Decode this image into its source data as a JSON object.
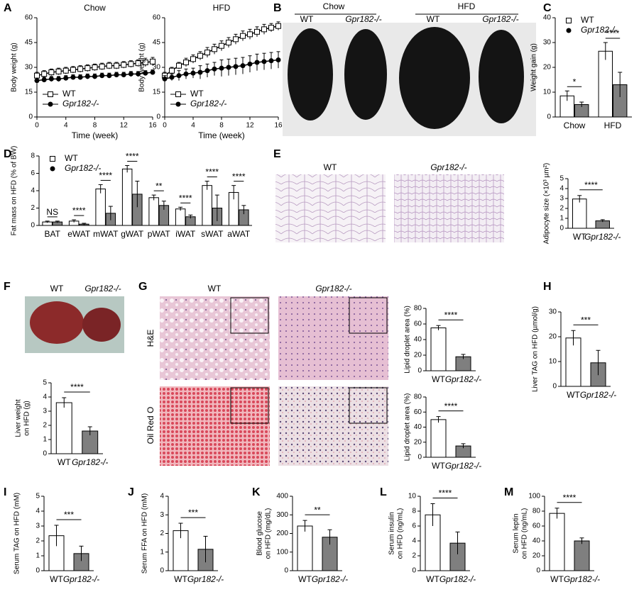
{
  "figure": {
    "panels": [
      "A",
      "B",
      "C",
      "D",
      "E",
      "F",
      "G",
      "H",
      "I",
      "J",
      "K",
      "L",
      "M"
    ],
    "B": {
      "groups": [
        "Chow",
        "HFD"
      ],
      "labels": [
        "WT",
        "Gpr182-/-",
        "WT",
        "Gpr182-/-"
      ]
    },
    "E": {
      "labels": [
        "WT",
        "Gpr182-/-"
      ]
    },
    "F": {
      "labels": [
        "WT",
        "Gpr182-/-"
      ]
    },
    "G": {
      "labels": [
        "WT",
        "Gpr182-/-"
      ],
      "rows": [
        "H&E",
        "Oil Red O"
      ]
    }
  },
  "chart_data": [
    {
      "type": "line",
      "title": "Chow",
      "xlabel": "Time (week)",
      "ylabel": "Body weight (g)",
      "x": [
        0,
        1,
        2,
        3,
        4,
        5,
        6,
        7,
        8,
        9,
        10,
        11,
        12,
        13,
        14,
        15,
        16
      ],
      "xlim": [
        0,
        16
      ],
      "xticks": [
        0,
        4,
        8,
        12,
        16
      ],
      "ylim": [
        0,
        60
      ],
      "yticks": [
        0,
        15,
        30,
        45,
        60
      ],
      "legend": "lower left",
      "series": [
        {
          "name": "WT",
          "color": "#000000",
          "marker": "square",
          "values": [
            25,
            26,
            27,
            27.5,
            28,
            28.5,
            29,
            29.5,
            30,
            30.5,
            31,
            31,
            31.5,
            32,
            32.5,
            33,
            33.5
          ],
          "errors": [
            2,
            2,
            2,
            2,
            2,
            2,
            2,
            2,
            2,
            2,
            2,
            2,
            2,
            2,
            2,
            2.5,
            2.5
          ]
        },
        {
          "name": "Gpr182-/-",
          "color": "#000000",
          "marker": "circle",
          "values": [
            22,
            22.5,
            23,
            23,
            23.5,
            24,
            24,
            24.5,
            24.5,
            25,
            25,
            25.5,
            25.5,
            26,
            26,
            26.5,
            27
          ],
          "errors": [
            1.5,
            1.5,
            1.5,
            1.5,
            1.5,
            1.5,
            1.5,
            1.5,
            1.5,
            1.5,
            1.5,
            1.5,
            1.5,
            1.5,
            1.5,
            1.5,
            1.5
          ]
        }
      ]
    },
    {
      "type": "line",
      "title": "HFD",
      "xlabel": "Time (week)",
      "ylabel": "Body weight (g)",
      "x": [
        0,
        1,
        2,
        3,
        4,
        5,
        6,
        7,
        8,
        9,
        10,
        11,
        12,
        13,
        14,
        15,
        16
      ],
      "xlim": [
        0,
        16
      ],
      "xticks": [
        0,
        4,
        8,
        12,
        16
      ],
      "ylim": [
        0,
        60
      ],
      "yticks": [
        0,
        15,
        30,
        45,
        60
      ],
      "legend": "lower left",
      "series": [
        {
          "name": "WT",
          "color": "#000000",
          "marker": "square",
          "values": [
            25,
            28,
            31,
            33,
            35,
            37,
            39,
            41,
            43,
            45,
            47,
            49,
            50,
            51.5,
            53,
            54,
            55
          ],
          "errors": [
            2,
            2,
            2,
            2.5,
            2.5,
            2.5,
            3,
            3,
            3,
            3,
            3,
            3,
            3,
            3,
            3,
            2.5,
            2.5
          ]
        },
        {
          "name": "Gpr182-/-",
          "color": "#000000",
          "marker": "circle",
          "values": [
            23,
            24,
            25,
            26,
            26.5,
            27,
            28,
            29,
            29.5,
            30,
            30.5,
            31,
            32,
            33,
            33.5,
            34,
            34.5
          ],
          "errors": [
            2,
            2,
            3,
            3,
            3,
            4,
            4,
            4,
            5,
            5,
            5,
            5,
            5,
            5,
            5,
            5,
            5
          ]
        }
      ]
    },
    {
      "type": "bar",
      "ylabel": "Weight gain (g)",
      "categories": [
        "Chow",
        "HFD"
      ],
      "ylim": [
        0,
        40
      ],
      "yticks": [
        0,
        10,
        20,
        30,
        40
      ],
      "legend": "upper left",
      "significance": [
        "*",
        "****"
      ],
      "series": [
        {
          "name": "WT",
          "color": "#ffffff",
          "marker": "square",
          "values": [
            8.5,
            26.5
          ],
          "errors": [
            2,
            3.5
          ]
        },
        {
          "name": "Gpr182-/-",
          "color": "#7f7f7f",
          "marker": "circle",
          "values": [
            5,
            13
          ],
          "errors": [
            1,
            5
          ]
        }
      ]
    },
    {
      "type": "bar",
      "ylabel": "Fat mass on HFD (% of BW)",
      "categories": [
        "BAT",
        "eWAT",
        "mWAT",
        "gWAT",
        "pWAT",
        "iWAT",
        "sWAT",
        "aWAT"
      ],
      "ylim": [
        0,
        8
      ],
      "yticks": [
        0,
        2,
        4,
        6,
        8
      ],
      "legend": "upper left",
      "significance": [
        "NS",
        "****",
        "****",
        "****",
        "**",
        "****",
        "****",
        "****"
      ],
      "series": [
        {
          "name": "WT",
          "color": "#ffffff",
          "marker": "square",
          "values": [
            0.4,
            0.5,
            4.2,
            6.5,
            3.2,
            1.9,
            4.6,
            3.8
          ],
          "errors": [
            0.1,
            0.15,
            0.5,
            0.4,
            0.3,
            0.2,
            0.5,
            0.8
          ]
        },
        {
          "name": "Gpr182-/-",
          "color": "#7f7f7f",
          "marker": "circle",
          "values": [
            0.4,
            0.15,
            1.4,
            3.6,
            2.3,
            1.0,
            2.0,
            1.8
          ],
          "errors": [
            0.1,
            0.1,
            0.8,
            1.5,
            0.5,
            0.2,
            1.5,
            0.5
          ]
        }
      ]
    },
    {
      "type": "bar",
      "ylabel": "Adipocyte size (×10³ µm²)",
      "categories": [
        "WT",
        "Gpr182-/-"
      ],
      "ylim": [
        0,
        5
      ],
      "yticks": [
        0,
        1,
        2,
        3,
        4,
        5
      ],
      "significance": "****",
      "series": [
        {
          "colors": [
            "#ffffff",
            "#7f7f7f"
          ],
          "values": [
            2.95,
            0.75
          ],
          "errors": [
            0.35,
            0.12
          ]
        }
      ]
    },
    {
      "type": "bar",
      "ylabel": [
        "Liver weight",
        "on HFD (g)"
      ],
      "categories": [
        "WT",
        "Gpr182-/-"
      ],
      "ylim": [
        0,
        5
      ],
      "yticks": [
        0,
        1,
        2,
        3,
        4,
        5
      ],
      "significance": "****",
      "series": [
        {
          "colors": [
            "#ffffff",
            "#7f7f7f"
          ],
          "values": [
            3.6,
            1.6
          ],
          "errors": [
            0.35,
            0.3
          ]
        }
      ]
    },
    {
      "type": "bar",
      "ylabel": "Lipid droplet area (%)",
      "categories": [
        "WT",
        "Gpr182-/-"
      ],
      "ylim": [
        0,
        80
      ],
      "yticks": [
        0,
        20,
        40,
        60,
        80
      ],
      "significance": "****",
      "series": [
        {
          "colors": [
            "#ffffff",
            "#7f7f7f"
          ],
          "values": [
            55,
            18
          ],
          "errors": [
            3,
            3
          ]
        }
      ]
    },
    {
      "type": "bar",
      "ylabel": "Lipid droplet area (%)",
      "categories": [
        "WT",
        "Gpr182-/-"
      ],
      "ylim": [
        0,
        80
      ],
      "yticks": [
        0,
        20,
        40,
        60,
        80
      ],
      "significance": "****",
      "series": [
        {
          "colors": [
            "#ffffff",
            "#7f7f7f"
          ],
          "values": [
            50,
            15
          ],
          "errors": [
            4,
            3
          ]
        }
      ]
    },
    {
      "type": "bar",
      "ylabel": "Liver TAG on HFD (µmol/g)",
      "categories": [
        "WT",
        "Gpr182-/-"
      ],
      "ylim": [
        0,
        30
      ],
      "yticks": [
        0,
        10,
        20,
        30
      ],
      "significance": "***",
      "series": [
        {
          "colors": [
            "#ffffff",
            "#7f7f7f"
          ],
          "values": [
            19.5,
            9.5
          ],
          "errors": [
            3,
            5
          ]
        }
      ]
    },
    {
      "type": "bar",
      "ylabel": "Serum TAG on HFD (mM)",
      "categories": [
        "WT",
        "Gpr182-/-"
      ],
      "ylim": [
        0,
        5
      ],
      "yticks": [
        0,
        1,
        2,
        3,
        4,
        5
      ],
      "significance": "***",
      "series": [
        {
          "colors": [
            "#ffffff",
            "#7f7f7f"
          ],
          "values": [
            2.35,
            1.15
          ],
          "errors": [
            0.7,
            0.5
          ]
        }
      ]
    },
    {
      "type": "bar",
      "ylabel": "Serum FFA on HFD (mM)",
      "categories": [
        "WT",
        "Gpr182-/-"
      ],
      "ylim": [
        0,
        4
      ],
      "yticks": [
        0,
        1,
        2,
        3,
        4
      ],
      "significance": "***",
      "series": [
        {
          "colors": [
            "#ffffff",
            "#7f7f7f"
          ],
          "values": [
            2.15,
            1.15
          ],
          "errors": [
            0.4,
            0.7
          ]
        }
      ]
    },
    {
      "type": "bar",
      "ylabel": [
        "Blood glucose",
        "on HFD (mg/dL)"
      ],
      "categories": [
        "WT",
        "Gpr182-/-"
      ],
      "ylim": [
        0,
        400
      ],
      "yticks": [
        0,
        100,
        200,
        300,
        400
      ],
      "significance": "**",
      "series": [
        {
          "colors": [
            "#ffffff",
            "#7f7f7f"
          ],
          "values": [
            240,
            180
          ],
          "errors": [
            30,
            40
          ]
        }
      ]
    },
    {
      "type": "bar",
      "ylabel": [
        "Serum insulin",
        "on HFD (ng/mL)"
      ],
      "categories": [
        "WT",
        "Gpr182-/-"
      ],
      "ylim": [
        0,
        10
      ],
      "yticks": [
        0,
        2,
        4,
        6,
        8,
        10
      ],
      "significance": "****",
      "series": [
        {
          "colors": [
            "#ffffff",
            "#7f7f7f"
          ],
          "values": [
            7.5,
            3.7
          ],
          "errors": [
            1.5,
            1.5
          ]
        }
      ]
    },
    {
      "type": "bar",
      "ylabel": [
        "Serum leptin",
        "on HFD (ng/mL)"
      ],
      "categories": [
        "WT",
        "Gpr182-/-"
      ],
      "ylim": [
        0,
        100
      ],
      "yticks": [
        0,
        20,
        40,
        60,
        80,
        100
      ],
      "significance": "****",
      "series": [
        {
          "colors": [
            "#ffffff",
            "#7f7f7f"
          ],
          "values": [
            77,
            40
          ],
          "errors": [
            7,
            4
          ]
        }
      ]
    }
  ]
}
